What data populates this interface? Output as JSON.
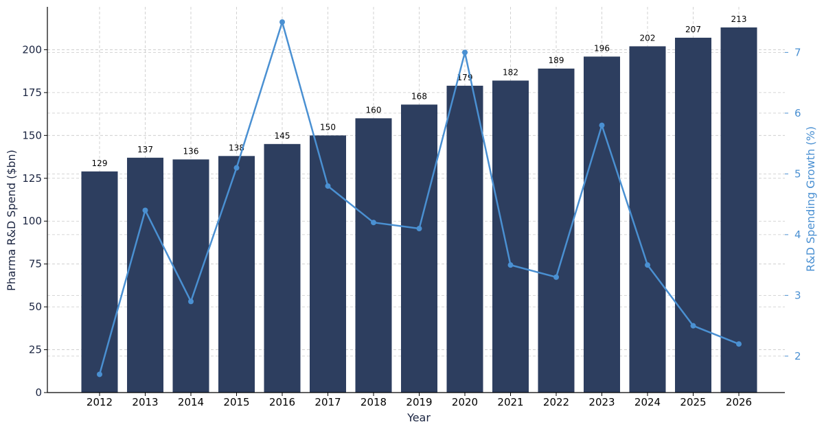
{
  "chart_data": {
    "type": "bar",
    "title": "",
    "xlabel": "Year",
    "ylabel": "Pharma R&D Spend ($bn)",
    "y2label": "R&D Spending Growth (%)",
    "categories": [
      "2012",
      "2013",
      "2014",
      "2015",
      "2016",
      "2017",
      "2018",
      "2019",
      "2020",
      "2021",
      "2022",
      "2023",
      "2024",
      "2025",
      "2026"
    ],
    "series": [
      {
        "type": "bar",
        "axis": "left",
        "values": [
          129,
          137,
          136,
          138,
          145,
          150,
          160,
          168,
          179,
          182,
          189,
          196,
          202,
          207,
          213
        ],
        "color": "#2d3e5f",
        "data_labels": [
          "129",
          "137",
          "136",
          "138",
          "145",
          "150",
          "160",
          "168",
          "179",
          "182",
          "189",
          "196",
          "202",
          "207",
          "213"
        ]
      },
      {
        "type": "line",
        "axis": "right",
        "values": [
          1.7,
          4.4,
          2.9,
          5.1,
          7.5,
          4.8,
          4.2,
          4.1,
          7.0,
          3.5,
          3.3,
          5.8,
          3.5,
          2.5,
          2.2
        ],
        "color": "#4a90d2"
      }
    ],
    "ylim": [
      0,
      225
    ],
    "y_ticks": [
      0,
      25,
      50,
      75,
      100,
      125,
      150,
      175,
      200
    ],
    "y2lim": [
      1.4,
      7.75
    ],
    "y2_ticks": [
      2,
      3,
      4,
      5,
      6,
      7
    ],
    "grid": true,
    "left_axis_color": "#1a2440",
    "right_axis_color": "#4a90d2"
  }
}
